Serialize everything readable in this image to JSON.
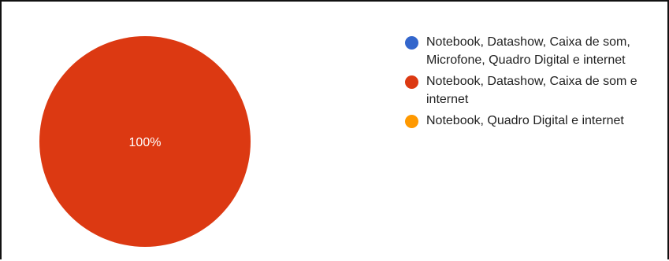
{
  "chart_data": {
    "type": "pie",
    "slices": [
      {
        "label": "Notebook, Datashow, Caixa de som, Microfone, Quadro Digital e internet",
        "value": 0,
        "color": "#3366cc"
      },
      {
        "label": "Notebook, Datashow, Caixa de som e internet",
        "value": 100,
        "color": "#dc3912"
      },
      {
        "label": "Notebook, Quadro Digital e internet",
        "value": 0,
        "color": "#ff9900"
      }
    ],
    "data_labels": [
      "",
      "100%",
      ""
    ],
    "legend_position": "right"
  }
}
